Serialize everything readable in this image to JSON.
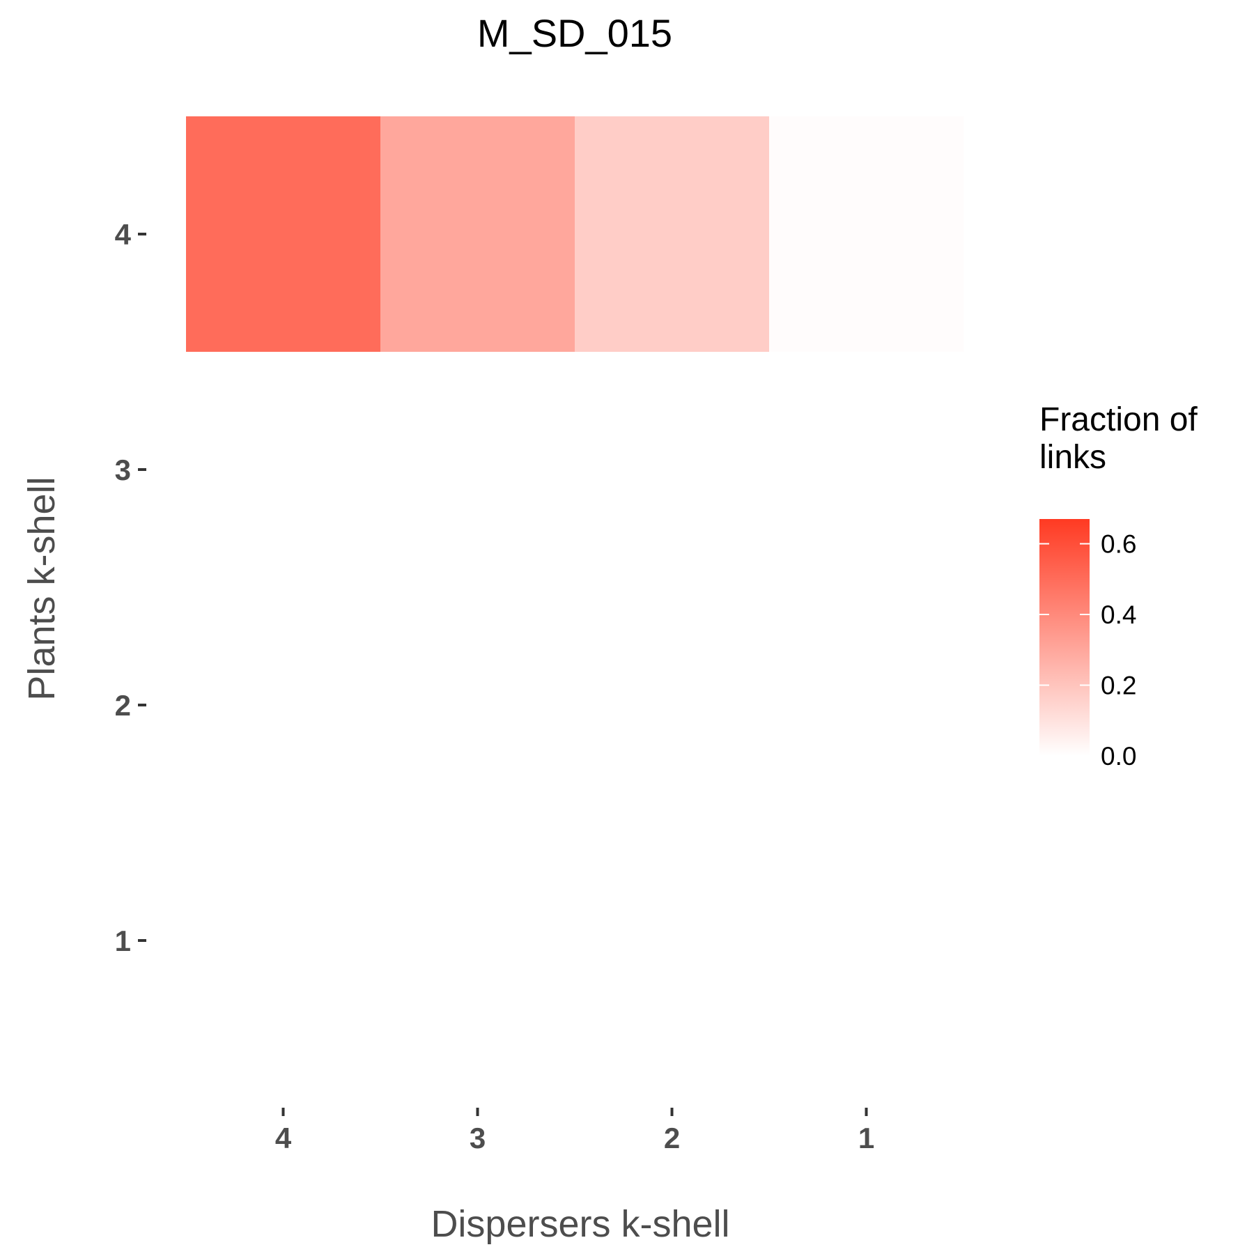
{
  "chart_data": {
    "type": "heatmap",
    "title": "M_SD_015",
    "xlabel": "Dispersers k-shell",
    "ylabel": "Plants k-shell",
    "x_categories": [
      "4",
      "3",
      "2",
      "1"
    ],
    "y_categories": [
      "4",
      "3",
      "2",
      "1"
    ],
    "cells": [
      {
        "x": "4",
        "y": "4",
        "value": 0.5
      },
      {
        "x": "3",
        "y": "4",
        "value": 0.3
      },
      {
        "x": "2",
        "y": "4",
        "value": 0.17
      },
      {
        "x": "1",
        "y": "4",
        "value": 0.01
      }
    ],
    "legend": {
      "title_lines": [
        "Fraction of",
        "links"
      ],
      "ticks": [
        {
          "value": 0.6,
          "label": "0.6"
        },
        {
          "value": 0.4,
          "label": "0.4"
        },
        {
          "value": 0.2,
          "label": "0.2"
        },
        {
          "value": 0.0,
          "label": "0.0"
        }
      ],
      "range": [
        0,
        0.67
      ],
      "placement": "right"
    },
    "color_low": "#ffffff",
    "color_high": "#ff3a22",
    "grid": false
  }
}
